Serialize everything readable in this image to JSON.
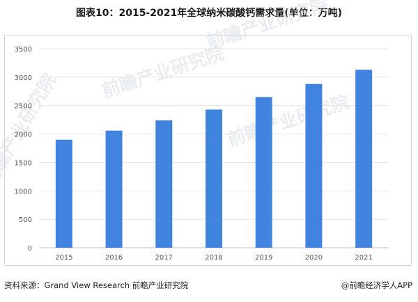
{
  "page": {
    "title": "图表10：2015-2021年全球纳米碳酸钙需求量(单位：万吨)",
    "source": "资料来源：Grand View Research 前瞻产业研究院",
    "credit": "@前瞻经济学人APP",
    "watermark": "前瞻产业研究院"
  },
  "colors": {
    "bar": "#4084e0",
    "axis_text": "#555555",
    "grid": "#e4e4e4"
  },
  "chart_data": {
    "type": "bar",
    "categories": [
      "2015",
      "2016",
      "2017",
      "2018",
      "2019",
      "2020",
      "2021"
    ],
    "values": [
      1900,
      2060,
      2240,
      2430,
      2650,
      2880,
      3130
    ],
    "ylim": [
      0,
      3500
    ],
    "yticks": [
      0,
      500,
      1000,
      1500,
      2000,
      2500,
      3000,
      3500
    ],
    "grid": true,
    "legend": "none"
  }
}
